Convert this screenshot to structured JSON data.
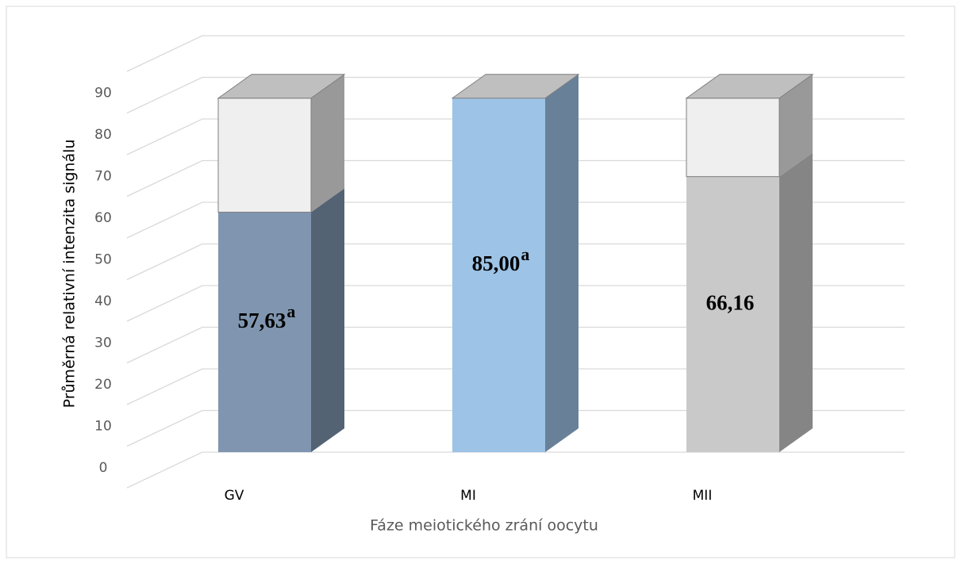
{
  "chart_data": {
    "type": "bar3d_stacked",
    "categories": [
      "GV",
      "MI",
      "MII"
    ],
    "x_label": "Fáze meiotického zrání oocytu",
    "y_label": "Průměrná relativní intenzita signálu",
    "series": [
      {
        "colors": [
          "#8096b0",
          "#9dc3e6",
          "#c9c9c9"
        ],
        "values": [
          57.63,
          85.0,
          66.16
        ],
        "value_labels": [
          "57,63",
          "85,00",
          "66,16"
        ],
        "label_superscripts": [
          "a",
          "a",
          null
        ]
      },
      {
        "color": "#efefef",
        "values": [
          27.37,
          0,
          18.84
        ]
      }
    ],
    "ylim": [
      0,
      100
    ],
    "yticks": [
      0,
      10,
      20,
      30,
      40,
      50,
      60,
      70,
      80,
      90
    ],
    "grid": true
  }
}
